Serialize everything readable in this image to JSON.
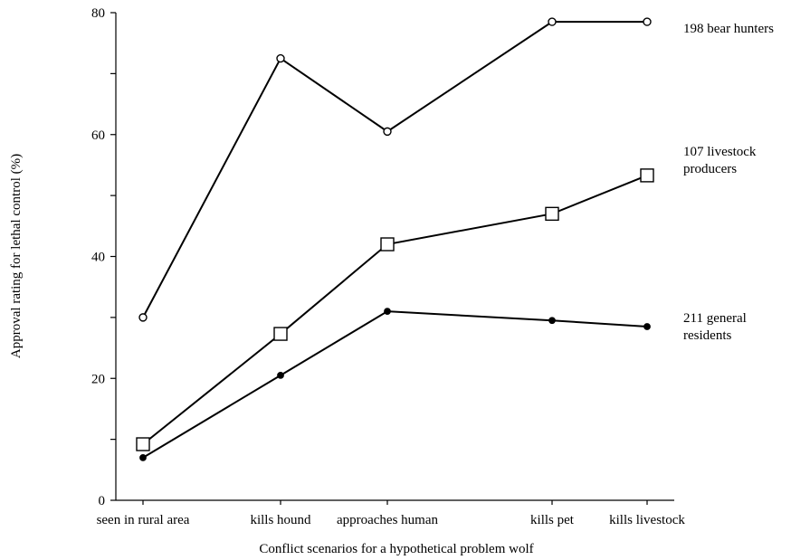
{
  "chart_data": {
    "type": "line",
    "title": "",
    "xlabel": "Conflict scenarios for a hypothetical problem wolf",
    "ylabel": "Approval rating for lethal control (%)",
    "ylim": [
      0,
      80
    ],
    "yticks": [
      0,
      10,
      20,
      30,
      40,
      50,
      60,
      70,
      80
    ],
    "ytick_labels": [
      "0",
      "20",
      "40",
      "60",
      "80"
    ],
    "categories": [
      "seen in rural area",
      "kills hound",
      "approaches human",
      "kills pet",
      "kills livestock"
    ],
    "grid": false,
    "legend": "none",
    "series": [
      {
        "name": "198 bear hunters",
        "label_lines": [
          "198 bear hunters"
        ],
        "marker": "open-circle",
        "points": [
          {
            "x": "seen in rural area",
            "y": 30
          },
          {
            "x": "kills hound",
            "y": 72.5
          },
          {
            "x": "approaches human",
            "y": 60.5
          },
          {
            "x": "kills pet",
            "y": 78.5
          },
          {
            "x": "kills livestock",
            "y": 78.5
          }
        ]
      },
      {
        "name": "107 livestock producers",
        "label_lines": [
          "107 livestock",
          "producers"
        ],
        "marker": "open-square",
        "points": [
          {
            "x": "seen in rural area",
            "y": 9.2
          },
          {
            "x": "kills hound",
            "y": 27.3
          },
          {
            "x": "approaches human",
            "y": 42
          },
          {
            "x": "kills pet",
            "y": 47
          },
          {
            "x": "kills livestock",
            "y": 53.3
          }
        ]
      },
      {
        "name": "211 general residents",
        "label_lines": [
          "211 general",
          "residents"
        ],
        "marker": "filled-circle",
        "points": [
          {
            "x": "seen in rural area",
            "y": 7
          },
          {
            "x": "kills hound",
            "y": 20.5
          },
          {
            "x": "approaches human",
            "y": 31
          },
          {
            "x": "kills pet",
            "y": 29.5
          },
          {
            "x": "kills livestock",
            "y": 28.5
          }
        ]
      }
    ],
    "colors": {
      "line": "#000000",
      "marker_fill_open": "#ffffff",
      "marker_fill_solid": "#000000"
    }
  }
}
